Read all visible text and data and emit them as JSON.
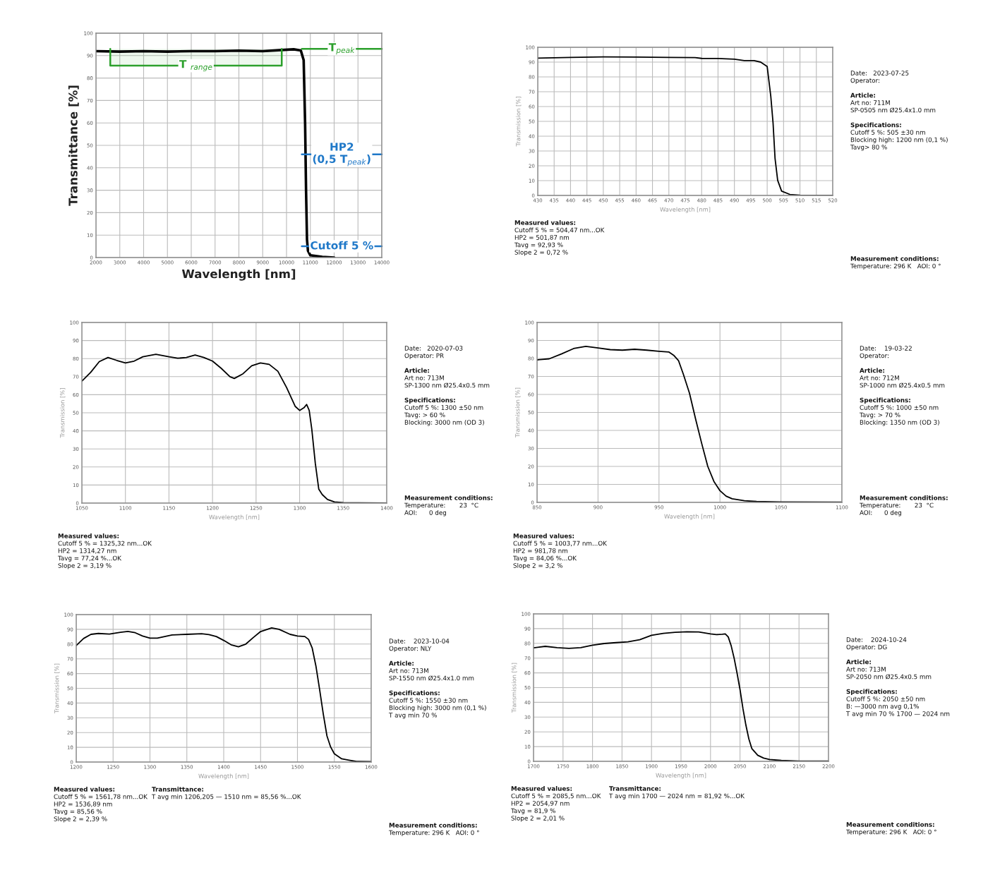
{
  "chart_data": [
    {
      "type": "line",
      "xlabel": "Wavelength [nm]",
      "ylabel": "Transmittance [%]",
      "x": [
        2000,
        3000,
        4000,
        5000,
        6000,
        7000,
        8000,
        9000,
        9800,
        10300,
        10600,
        10720,
        10780,
        10820,
        10860,
        10900,
        11000,
        11500,
        12000
      ],
      "series": [
        {
          "color": "#000000",
          "values": [
            92,
            91.8,
            92,
            91.8,
            92,
            92,
            92.2,
            92,
            92.5,
            92.8,
            92.3,
            88,
            60,
            30,
            8,
            3,
            1,
            0.3,
            0
          ]
        }
      ],
      "xlim": [
        2000,
        14000
      ],
      "ylim": [
        0,
        100
      ],
      "xticks": [
        2000,
        3000,
        4000,
        5000,
        6000,
        7000,
        8000,
        9000,
        10000,
        11000,
        12000,
        13000,
        14000
      ],
      "yticks": [
        0,
        10,
        20,
        30,
        40,
        50,
        60,
        70,
        80,
        90,
        100
      ],
      "grid": true,
      "ref_lines": [
        {
          "axis": "y",
          "value": 93,
          "label": "T$_{peak}$",
          "color": "#2ca02c"
        },
        {
          "axis": "y",
          "value": 46,
          "label": "HP2\n(0,5 T$_{peak}$)",
          "color": "#1f78c8"
        },
        {
          "axis": "y",
          "value": 5,
          "label": "Cutoff 5 %",
          "color": "#1f78c8"
        }
      ],
      "bands": [
        {
          "axis": "x",
          "from": 2600,
          "to": 9800,
          "label": "T $_{range}$",
          "color": "#2ca02c"
        }
      ]
    },
    {
      "type": "line",
      "xlabel": "Wavelength [nm]",
      "ylabel": "Transmission [%]",
      "x": [
        430,
        440,
        450,
        460,
        470,
        478,
        480,
        485,
        490,
        493,
        496,
        498,
        500,
        501.1,
        501.8,
        502.4,
        503.2,
        504.4,
        506.9,
        510,
        520
      ],
      "series": [
        {
          "color": "#000000",
          "values": [
            92.7,
            93.2,
            93.5,
            93.4,
            93.2,
            93,
            92.5,
            92.4,
            92,
            91,
            91,
            90,
            87,
            66.9,
            48.6,
            24.9,
            10.2,
            2.9,
            0.7,
            0.2,
            0
          ]
        }
      ],
      "xlim": [
        430,
        520
      ],
      "ylim": [
        0,
        100
      ],
      "xticks": [
        430,
        435,
        440,
        445,
        450,
        455,
        460,
        465,
        470,
        475,
        480,
        485,
        490,
        495,
        500,
        505,
        510,
        515,
        520
      ],
      "yticks": [
        0,
        10,
        20,
        30,
        40,
        50,
        60,
        70,
        80,
        90,
        100
      ],
      "grid": true,
      "annotations": [
        "Date:   2023-07-25\nOperator:",
        "Article:\nArt no: 711M\nSP-0505 nm Ø25.4x1.0 mm",
        "Specifications:\nCutoff 5 %: 505 ±30 nm\nBlocking high: 1200 nm (0,1 %)\nTavg> 80 %",
        "Measured values:\nCutoff 5 % = 504,47 nm...OK\nHP2 = 501,87 nm\nTavg = 92,93 %\nSlope 2 = 0,72 %",
        "Measurement conditions:\nTemperature: 296 K   AOI: 0 °"
      ]
    },
    {
      "type": "line",
      "xlabel": "Wavelength [nm]",
      "ylabel": "Transmission [%]",
      "x": [
        1050,
        1060,
        1070,
        1080,
        1090,
        1100,
        1110,
        1120,
        1135,
        1150,
        1160,
        1170,
        1180,
        1190,
        1200,
        1210,
        1220,
        1225,
        1235,
        1245,
        1255,
        1265,
        1275,
        1285,
        1295,
        1300,
        1305,
        1308,
        1311,
        1314,
        1318,
        1322,
        1326,
        1332,
        1340,
        1350,
        1400
      ],
      "series": [
        {
          "color": "#000000",
          "values": [
            67.5,
            72.3,
            78.3,
            80.6,
            79,
            77.6,
            78.6,
            81,
            82.4,
            81,
            80.2,
            80.6,
            82,
            80.6,
            78.6,
            74.6,
            70,
            69,
            71.6,
            76,
            77.6,
            76.8,
            73,
            64,
            53.5,
            51.3,
            52.8,
            54.6,
            51.3,
            40.8,
            22,
            7.7,
            4.7,
            2,
            0.6,
            0.2,
            0
          ]
        }
      ],
      "xlim": [
        1050,
        1400
      ],
      "ylim": [
        0,
        100
      ],
      "xticks": [
        1050,
        1100,
        1150,
        1200,
        1250,
        1300,
        1350,
        1400
      ],
      "yticks": [
        0,
        10,
        20,
        30,
        40,
        50,
        60,
        70,
        80,
        90,
        100
      ],
      "grid": true,
      "annotations": [
        "Date:   2020-07-03\nOperator: PR",
        "Article:\nArt no: 713M\nSP-1300 nm Ø25.4x0.5 mm",
        "Specifications:\nCutoff 5 %: 1300 ±50 nm\nTavg: > 60 %\nBlocking: 3000 nm (OD 3)",
        "Measured values:\nCutoff 5 % = 1325,32 nm...OK\nHP2 = 1314,27 nm\nTavg = 77,24 %...OK\nSlope 2 = 3,19 %",
        "Measurement conditions:\nTemperature:       23  °C\nAOI:      0 deg"
      ]
    },
    {
      "type": "line",
      "xlabel": "Wavelength [nm]",
      "ylabel": "Transmission [%]",
      "x": [
        850,
        860,
        870,
        880,
        890,
        900,
        910,
        920,
        930,
        940,
        950,
        958,
        962,
        966,
        970,
        975,
        980,
        985,
        990,
        995,
        1000,
        1005,
        1010,
        1020,
        1030,
        1050,
        1100
      ],
      "series": [
        {
          "color": "#000000",
          "values": [
            79.2,
            79.8,
            82.5,
            85.5,
            86.7,
            85.8,
            84.9,
            84.6,
            85.1,
            84.6,
            84,
            83.6,
            81.8,
            78.8,
            71.2,
            60.7,
            46.4,
            32.8,
            20,
            11.7,
            6.5,
            3.5,
            2,
            0.9,
            0.5,
            0.2,
            0.1
          ]
        }
      ],
      "xlim": [
        850,
        1100
      ],
      "ylim": [
        0,
        100
      ],
      "xticks": [
        850,
        900,
        950,
        1000,
        1050,
        1100
      ],
      "yticks": [
        0,
        10,
        20,
        30,
        40,
        50,
        60,
        70,
        80,
        90,
        100
      ],
      "grid": true,
      "annotations": [
        "Date:    19-03-22\nOperator:",
        "Article:\nArt no: 712M\nSP-1000 nm Ø25.4x0.5 mm",
        "Specifications:\nCutoff 5 %: 1000 ±50 nm\nTavg: > 70 %\nBlocking: 1350 nm (OD 3)",
        "Measured values:\nCutoff 5 % = 1003,77 nm...OK\nHP2 = 981,78 nm\nTavg = 84,06 %...OK\nSlope 2 = 3,2 %",
        "Measurement conditions:\nTemperature:       23  °C\nAOI:      0 deg"
      ]
    },
    {
      "type": "line",
      "xlabel": "Wavelength [nm]",
      "ylabel": "Transmission [%]",
      "x": [
        1200,
        1210,
        1220,
        1230,
        1245,
        1260,
        1270,
        1280,
        1290,
        1300,
        1310,
        1320,
        1330,
        1350,
        1370,
        1380,
        1390,
        1400,
        1410,
        1420,
        1430,
        1440,
        1450,
        1465,
        1475,
        1490,
        1500,
        1510,
        1515,
        1520,
        1525,
        1530,
        1535,
        1540,
        1545,
        1550,
        1560,
        1570,
        1580,
        1600
      ],
      "series": [
        {
          "color": "#000000",
          "values": [
            79,
            83.8,
            86.6,
            87.2,
            86.8,
            88,
            88.6,
            87.7,
            85.5,
            84,
            84,
            85.1,
            86.2,
            86.6,
            87,
            86.4,
            85.1,
            82.5,
            79.5,
            78.2,
            80,
            84.4,
            88.5,
            91,
            90,
            86.6,
            85.5,
            85.1,
            83.2,
            77.3,
            65.2,
            49.3,
            32.6,
            17.7,
            10.2,
            5.6,
            2.2,
            1.3,
            0.4,
            0.3
          ]
        }
      ],
      "xlim": [
        1200,
        1600
      ],
      "ylim": [
        0,
        100
      ],
      "xticks": [
        1200,
        1250,
        1300,
        1350,
        1400,
        1450,
        1500,
        1550,
        1600
      ],
      "yticks": [
        0,
        10,
        20,
        30,
        40,
        50,
        60,
        70,
        80,
        90,
        100
      ],
      "grid": true,
      "annotations": [
        "Date:    2023-10-04\nOperator: NLY",
        "Article:\nArt no: 713M\nSP-1550 nm Ø25.4x1.0 mm",
        "Specifications:\nCutoff 5 %: 1550 ±30 nm\nBlocking high: 3000 nm (0,1 %)\nT avg min 70 %",
        "Measured values:\nCutoff 5 % = 1561,78 nm...OK\nHP2 = 1536,89 nm\nTavg = 85,56 %\nSlope 2 = 2,39 %",
        "Transmittance:\nT avg min 1206,205 — 1510 nm = 85,56 %...OK",
        "Measurement conditions:\nTemperature: 296 K   AOI: 0 °"
      ]
    },
    {
      "type": "line",
      "xlabel": "Wavelength [nm]",
      "ylabel": "Transmission [%]",
      "x": [
        1700,
        1720,
        1740,
        1760,
        1780,
        1800,
        1820,
        1840,
        1860,
        1880,
        1900,
        1920,
        1940,
        1960,
        1980,
        2000,
        2010,
        2020,
        2025,
        2030,
        2035,
        2040,
        2045,
        2050,
        2055,
        2060,
        2065,
        2070,
        2080,
        2090,
        2100,
        2120,
        2150,
        2200
      ],
      "series": [
        {
          "color": "#000000",
          "values": [
            77,
            78,
            77.1,
            76.6,
            77.1,
            78.8,
            79.9,
            80.5,
            81,
            82.5,
            85.5,
            86.8,
            87.5,
            87.9,
            87.7,
            86.4,
            85.9,
            86.2,
            86.4,
            84.4,
            78.4,
            70,
            59.8,
            48.7,
            35.7,
            24.5,
            15.2,
            8.7,
            4.1,
            2.2,
            1.3,
            0.6,
            0.2,
            0.2
          ]
        }
      ],
      "xlim": [
        1700,
        2200
      ],
      "ylim": [
        0,
        100
      ],
      "xticks": [
        1700,
        1750,
        1800,
        1850,
        1900,
        1950,
        2000,
        2050,
        2100,
        2150,
        2200
      ],
      "yticks": [
        0,
        10,
        20,
        30,
        40,
        50,
        60,
        70,
        80,
        90,
        100
      ],
      "grid": true,
      "annotations": [
        "Date:    2024-10-24\nOperator: DG",
        "Article:\nArt no: 713M\nSP-2050 nm Ø25.4x0.5 mm",
        "Specifications:\nCutoff 5 %: 2050 ±50 nm\nB: —3000 nm avg 0,1%\nT avg min 70 % 1700 — 2024 nm",
        "Measured values:\nCutoff 5 % = 2085,5 nm...OK\nHP2 = 2054,97 nm\nTavg = 81,9 %\nSlope 2 = 2,01 %",
        "Transmittance:\nT avg min 1700 — 2024 nm = 81,92 %...OK",
        "Measurement conditions:\nTemperature: 296 K   AOI: 0 °"
      ]
    }
  ]
}
